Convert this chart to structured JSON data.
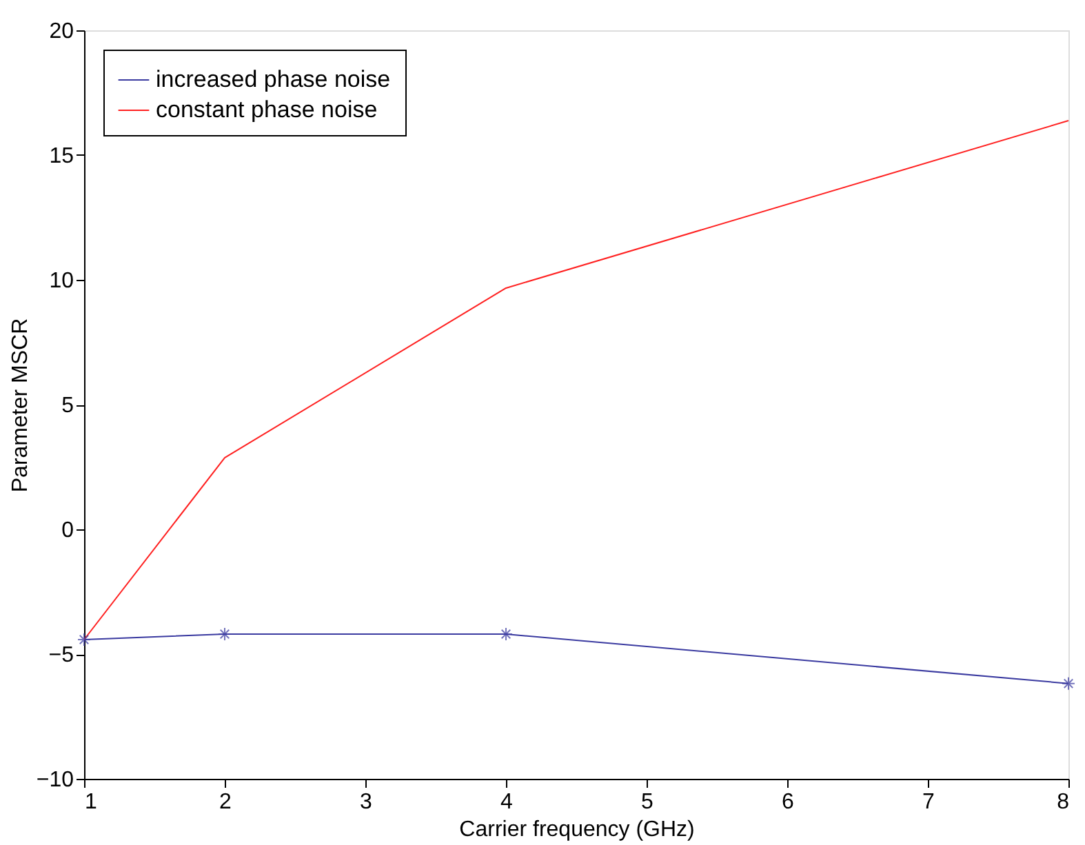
{
  "chart_data": {
    "type": "line",
    "xlabel": "Carrier frequency (GHz)",
    "ylabel": "Parameter MSCR",
    "x": [
      1,
      2,
      4,
      8
    ],
    "series": [
      {
        "name": "increased phase noise",
        "color": "#3a3aa0",
        "marker": "cross",
        "values": [
          -4.42,
          -4.2,
          -4.2,
          -6.18
        ]
      },
      {
        "name": "constant phase noise",
        "color": "#ff2020",
        "marker": "none",
        "values": [
          -4.42,
          2.87,
          9.67,
          16.38
        ]
      }
    ],
    "xlim": [
      1,
      8
    ],
    "xticks": [
      1,
      2,
      3,
      4,
      5,
      6,
      7,
      8
    ],
    "ylim": [
      -10,
      20
    ],
    "yticks": [
      -10,
      -5,
      0,
      5,
      10,
      15,
      20
    ],
    "grid": false,
    "legend": "top left",
    "line_style": "solid"
  }
}
